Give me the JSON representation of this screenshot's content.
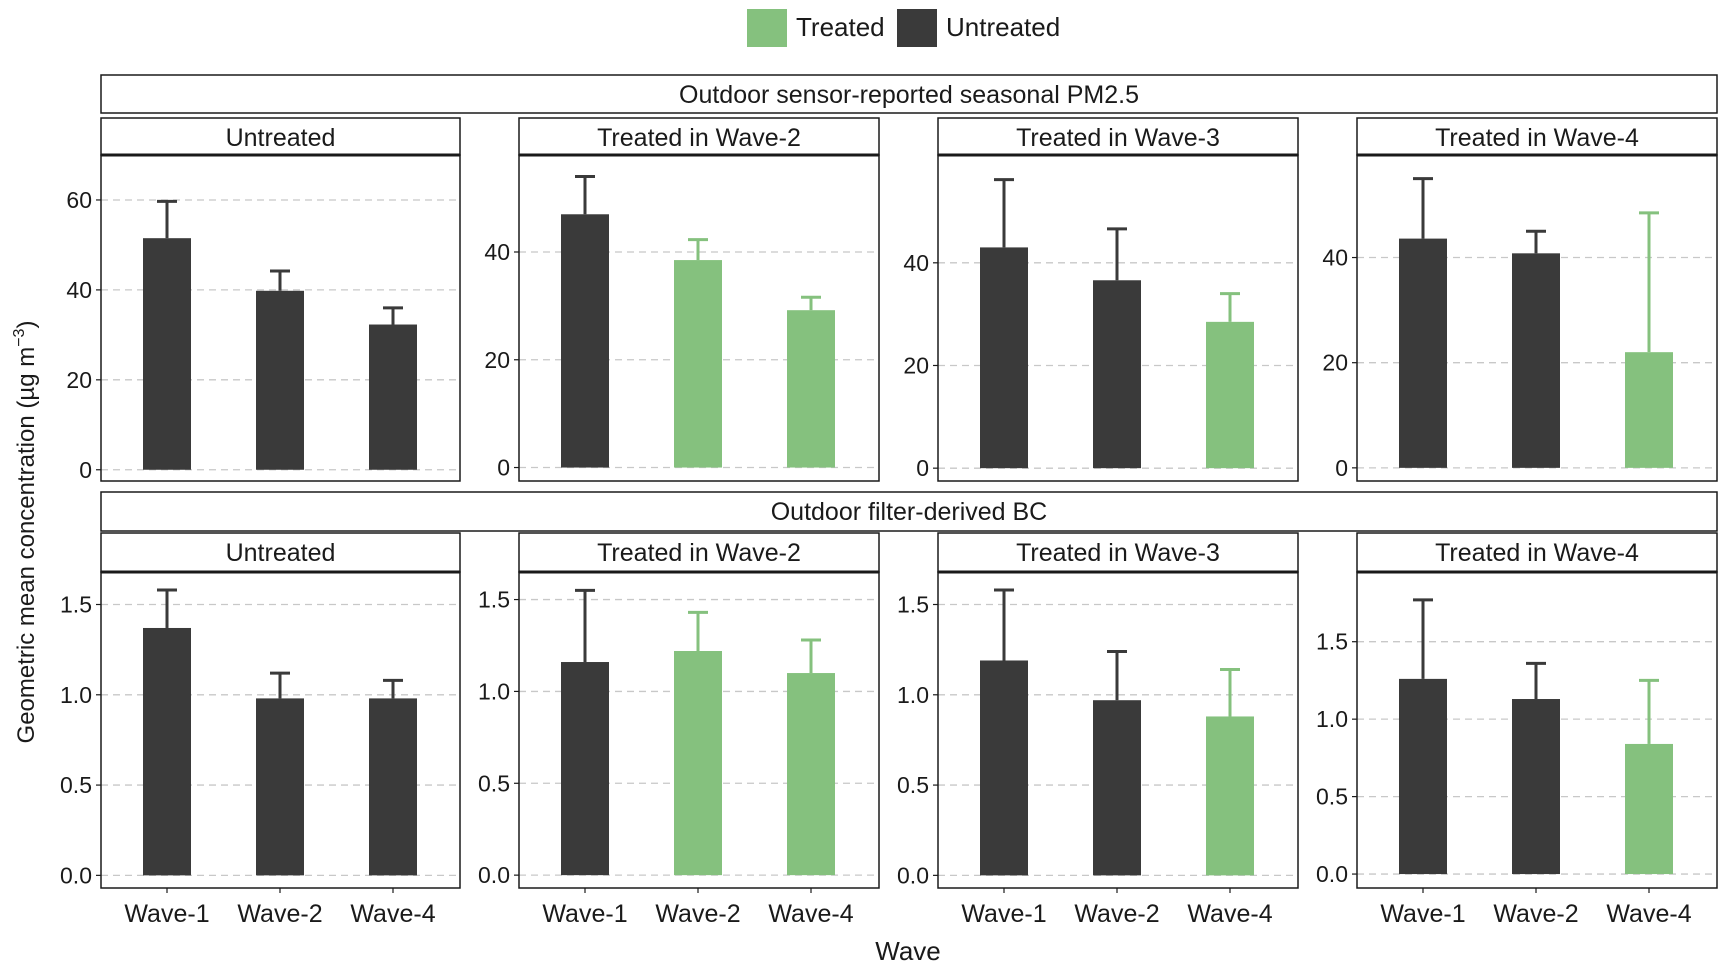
{
  "legend": {
    "items": [
      {
        "label": "Treated",
        "color": "#85C17E"
      },
      {
        "label": "Untreated",
        "color": "#3A3A3A"
      }
    ]
  },
  "axes": {
    "ylabel": "Geometric mean concentration (µg m",
    "ylabel_sup": "−3",
    "ylabel_close": ")",
    "xlabel": "Wave"
  },
  "colors": {
    "treated": "#85C17E",
    "untreated": "#3A3A3A",
    "grid": "#c8c8c8",
    "strip_bg": "#ffffff"
  },
  "chart_data": [
    {
      "type": "bar",
      "title": "Outdoor sensor-reported seasonal PM2.5",
      "panels": [
        {
          "title": "Untreated",
          "categories": [
            "Wave-1",
            "Wave-2",
            "Wave-4"
          ],
          "values": [
            51.5,
            39.8,
            32.3
          ],
          "error_upper": [
            59.7,
            44.2,
            36.0
          ],
          "treated": [
            false,
            false,
            false
          ],
          "ylim": [
            -2.5,
            70
          ],
          "yticks": [
            0,
            20,
            40,
            60
          ]
        },
        {
          "title": "Treated in Wave-2",
          "categories": [
            "Wave-1",
            "Wave-2",
            "Wave-4"
          ],
          "values": [
            47.0,
            38.5,
            29.2
          ],
          "error_upper": [
            54.0,
            42.3,
            31.6
          ],
          "treated": [
            false,
            true,
            true
          ],
          "ylim": [
            -2.5,
            58
          ],
          "yticks": [
            0,
            20,
            40
          ]
        },
        {
          "title": "Treated in Wave-3",
          "categories": [
            "Wave-1",
            "Wave-2",
            "Wave-4"
          ],
          "values": [
            43.0,
            36.6,
            28.5
          ],
          "error_upper": [
            56.2,
            46.6,
            34.0
          ],
          "treated": [
            false,
            false,
            true
          ],
          "ylim": [
            -2.5,
            61
          ],
          "yticks": [
            0,
            20,
            40
          ]
        },
        {
          "title": "Treated in Wave-4",
          "categories": [
            "Wave-1",
            "Wave-2",
            "Wave-4"
          ],
          "values": [
            43.6,
            40.8,
            22.0
          ],
          "error_upper": [
            55.0,
            45.0,
            48.5
          ],
          "treated": [
            false,
            false,
            true
          ],
          "ylim": [
            -2.5,
            59.5
          ],
          "yticks": [
            0,
            20,
            40
          ]
        }
      ]
    },
    {
      "type": "bar",
      "title": "Outdoor filter-derived BC",
      "panels": [
        {
          "title": "Untreated",
          "categories": [
            "Wave-1",
            "Wave-2",
            "Wave-4"
          ],
          "values": [
            1.37,
            0.98,
            0.98
          ],
          "error_upper": [
            1.58,
            1.12,
            1.08
          ],
          "treated": [
            false,
            false,
            false
          ],
          "ylim": [
            -0.07,
            1.68
          ],
          "yticks": [
            0.0,
            0.5,
            1.0,
            1.5
          ],
          "ytick_labels": [
            "0.0",
            "0.5",
            "1.0",
            "1.5"
          ]
        },
        {
          "title": "Treated in Wave-2",
          "categories": [
            "Wave-1",
            "Wave-2",
            "Wave-4"
          ],
          "values": [
            1.16,
            1.22,
            1.1
          ],
          "error_upper": [
            1.55,
            1.43,
            1.28
          ],
          "treated": [
            false,
            true,
            true
          ],
          "ylim": [
            -0.07,
            1.65
          ],
          "yticks": [
            0.0,
            0.5,
            1.0,
            1.5
          ],
          "ytick_labels": [
            "0.0",
            "0.5",
            "1.0",
            "1.5"
          ]
        },
        {
          "title": "Treated in Wave-3",
          "categories": [
            "Wave-1",
            "Wave-2",
            "Wave-4"
          ],
          "values": [
            1.19,
            0.97,
            0.88
          ],
          "error_upper": [
            1.58,
            1.24,
            1.14
          ],
          "treated": [
            false,
            false,
            true
          ],
          "ylim": [
            -0.07,
            1.68
          ],
          "yticks": [
            0.0,
            0.5,
            1.0,
            1.5
          ],
          "ytick_labels": [
            "0.0",
            "0.5",
            "1.0",
            "1.5"
          ]
        },
        {
          "title": "Treated in Wave-4",
          "categories": [
            "Wave-1",
            "Wave-2",
            "Wave-4"
          ],
          "values": [
            1.26,
            1.13,
            0.84
          ],
          "error_upper": [
            1.77,
            1.36,
            1.25
          ],
          "treated": [
            false,
            false,
            true
          ],
          "ylim": [
            -0.09,
            1.95
          ],
          "yticks": [
            0.0,
            0.5,
            1.0,
            1.5
          ],
          "ytick_labels": [
            "0.0",
            "0.5",
            "1.0",
            "1.5"
          ]
        }
      ]
    }
  ]
}
